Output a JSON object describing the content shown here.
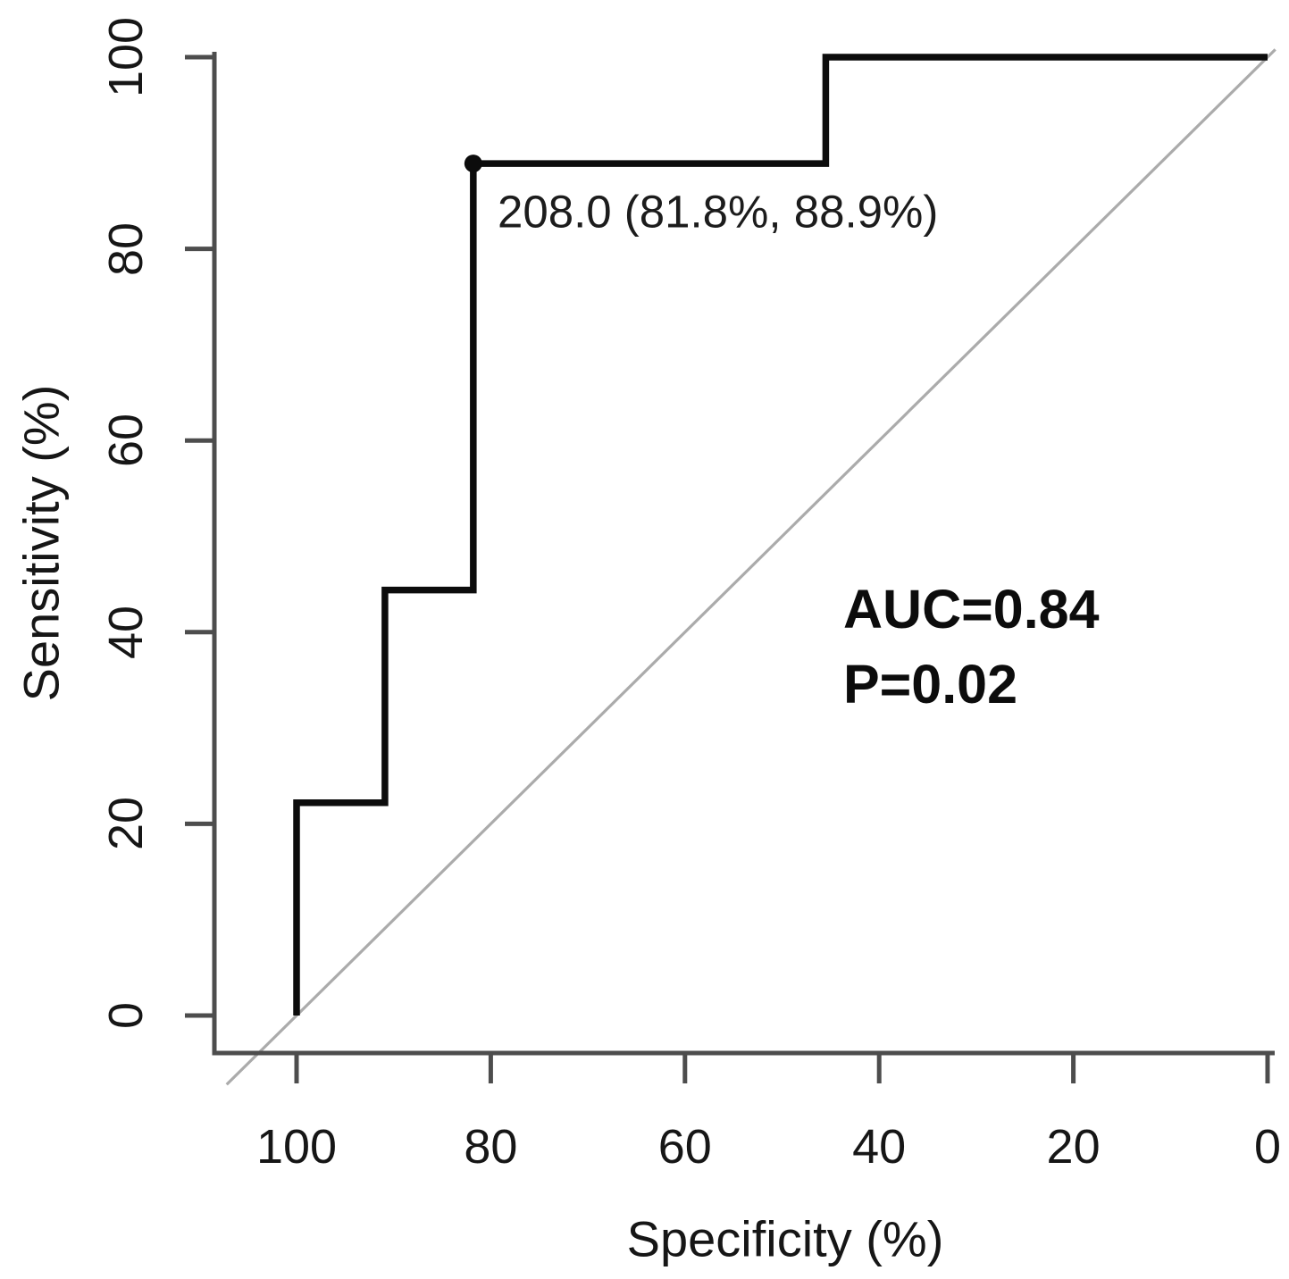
{
  "chart_data": {
    "type": "line",
    "subtype": "roc-curve",
    "title": "",
    "xlabel": "Specificity (%)",
    "ylabel": "Sensitivity (%)",
    "x_ticks": [
      100,
      80,
      60,
      40,
      20,
      0
    ],
    "y_ticks": [
      0,
      20,
      40,
      60,
      80,
      100
    ],
    "xlim": [
      100,
      0
    ],
    "ylim": [
      0,
      100
    ],
    "x_axis_reversed": true,
    "grid": false,
    "legend": "none",
    "series": [
      {
        "name": "ROC curve",
        "style": "step",
        "color": "#0c0c0c",
        "points_specificity_sensitivity": [
          [
            100,
            0
          ],
          [
            100,
            22.2
          ],
          [
            90.9,
            22.2
          ],
          [
            90.9,
            44.4
          ],
          [
            81.8,
            44.4
          ],
          [
            81.8,
            88.9
          ],
          [
            45.5,
            88.9
          ],
          [
            45.5,
            100
          ],
          [
            0,
            100
          ]
        ]
      },
      {
        "name": "Chance diagonal",
        "style": "straight",
        "color": "#ababab",
        "points_specificity_sensitivity": [
          [
            100,
            0
          ],
          [
            0,
            100
          ]
        ]
      }
    ],
    "optimal_cutoff": {
      "threshold": "208.0",
      "specificity_pct": 81.8,
      "sensitivity_pct": 88.9,
      "label": "208.0 (81.8%, 88.9%)"
    },
    "auc": "0.84",
    "p_value": "0.02",
    "annotations": [
      "AUC=0.84",
      "P=0.02"
    ]
  }
}
